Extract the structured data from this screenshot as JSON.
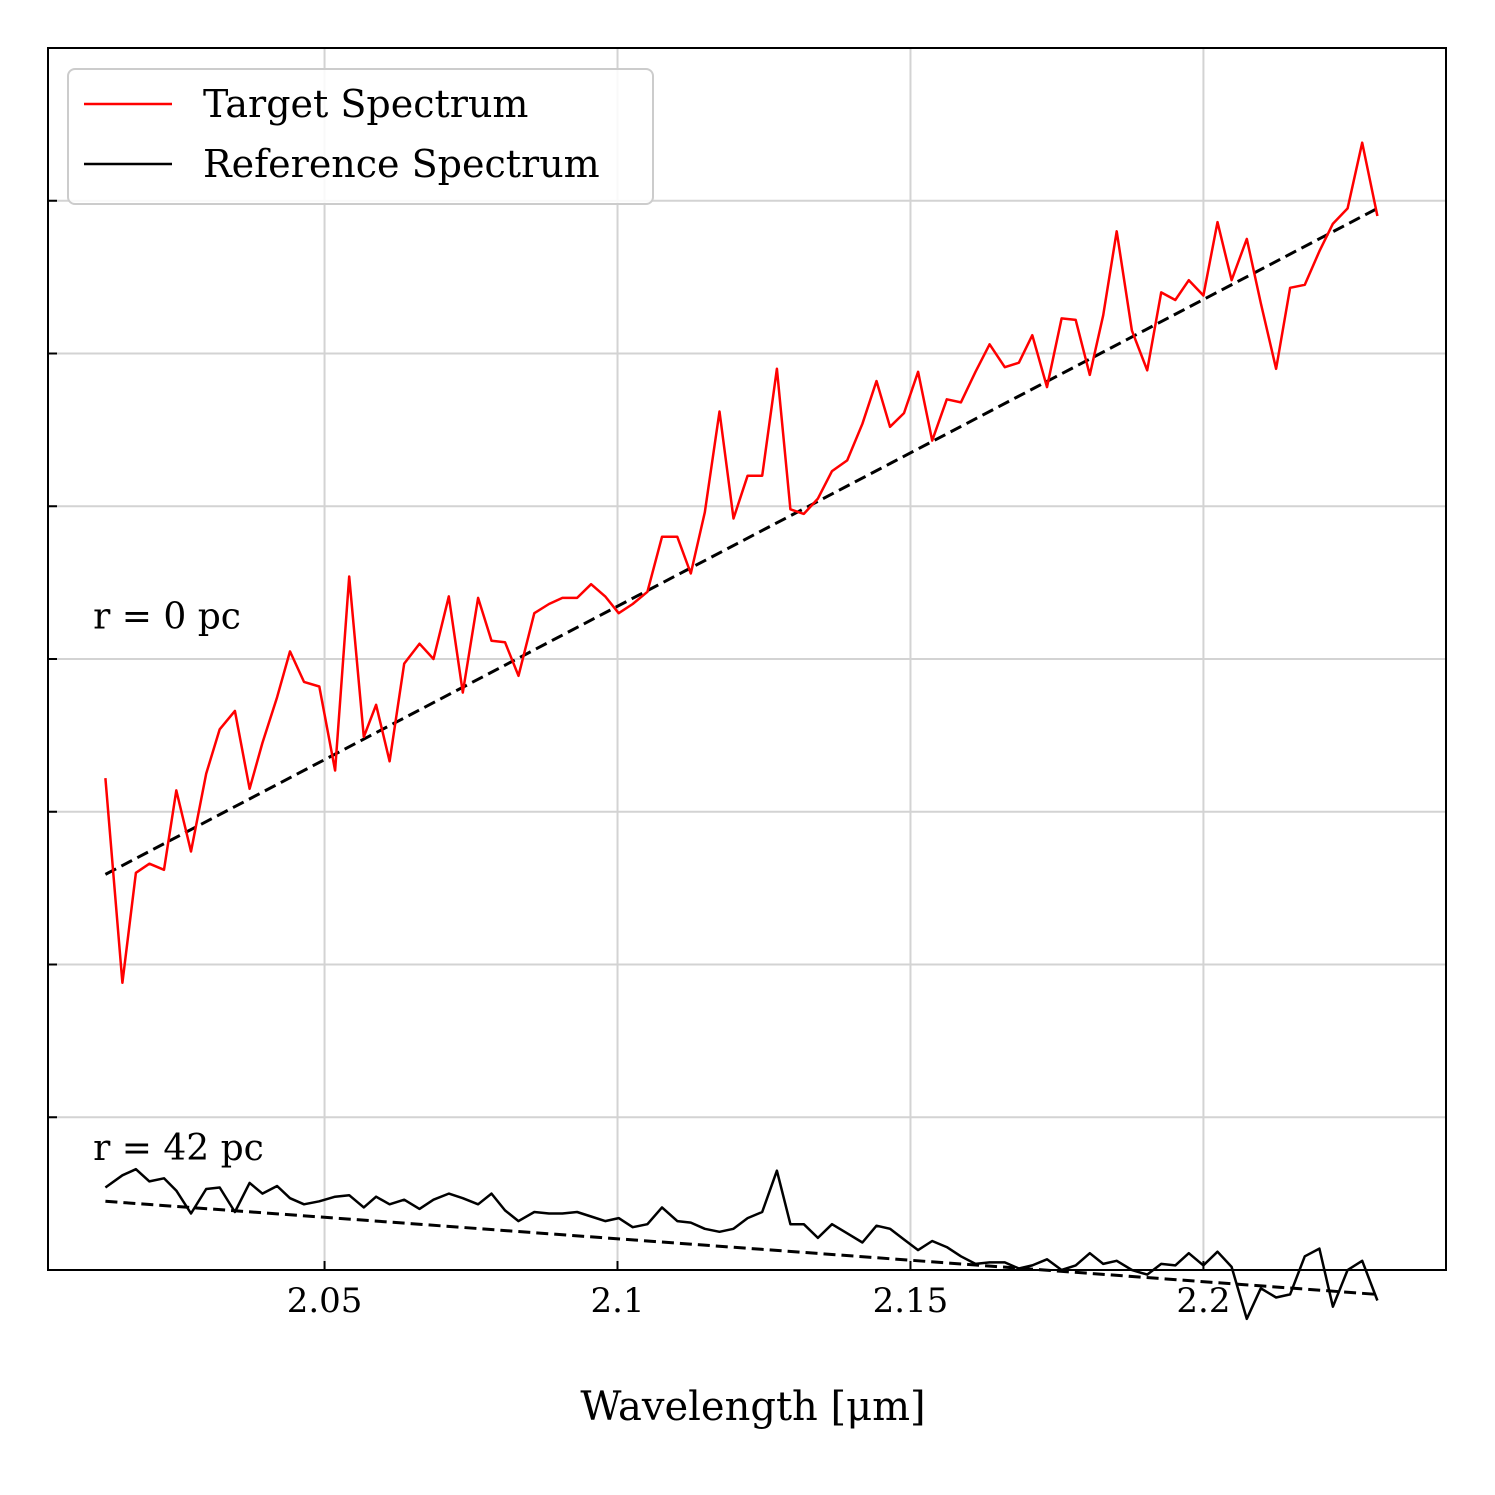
{
  "chart_data": {
    "type": "line",
    "title": "",
    "xlabel": "Wavelength [μm]",
    "ylabel": "",
    "xlim": [
      2.0028,
      2.2414
    ],
    "ylim": [
      0,
      8
    ],
    "grid": true,
    "legend_position": "top-left",
    "x_ticks": [
      2.05,
      2.1,
      2.15,
      2.2
    ],
    "x_tick_labels": [
      "2.05",
      "2.1",
      "2.15",
      "2.2"
    ],
    "y_ticks": [
      1,
      2,
      3,
      4,
      5,
      6,
      7
    ],
    "annotations": [
      {
        "text": "r = 0 pc",
        "x": 2.0105,
        "y": 4.2
      },
      {
        "text": "r = 42 pc",
        "x": 2.0105,
        "y": 0.72
      }
    ],
    "series": [
      {
        "name": "Target Spectrum",
        "color": "#ff0000",
        "x": [
          2.0126,
          2.0155,
          2.0178,
          2.0201,
          2.0226,
          2.0247,
          2.0272,
          2.0298,
          2.0321,
          2.0347,
          2.0372,
          2.0394,
          2.0419,
          2.0441,
          2.0465,
          2.0491,
          2.0518,
          2.0542,
          2.0567,
          2.0588,
          2.0611,
          2.0636,
          2.0662,
          2.0686,
          2.0712,
          2.0736,
          2.0762,
          2.0785,
          2.0808,
          2.0831,
          2.0858,
          2.0883,
          2.0906,
          2.0931,
          2.0955,
          2.0979,
          2.1002,
          2.1026,
          2.1051,
          2.1076,
          2.1102,
          2.1125,
          2.1149,
          2.1174,
          2.1198,
          2.1222,
          2.1247,
          2.1272,
          2.1295,
          2.1318,
          2.1342,
          2.1366,
          2.1392,
          2.1418,
          2.1442,
          2.1465,
          2.1489,
          2.1513,
          2.1537,
          2.1562,
          2.1586,
          2.1611,
          2.1635,
          2.1661,
          2.1685,
          2.1708,
          2.1733,
          2.1758,
          2.1782,
          2.1806,
          2.1829,
          2.1852,
          2.1878,
          2.1904,
          2.1928,
          2.1952,
          2.1975,
          2.2,
          2.2024,
          2.2048,
          2.2074,
          2.2098,
          2.2124,
          2.2148,
          2.2173,
          2.2198,
          2.2221,
          2.2246,
          2.2271,
          2.2297
        ],
        "y": [
          3.22,
          1.88,
          2.6,
          2.66,
          2.62,
          3.14,
          2.74,
          3.25,
          3.54,
          3.66,
          3.15,
          3.45,
          3.75,
          4.05,
          3.85,
          3.82,
          3.27,
          4.54,
          3.49,
          3.7,
          3.33,
          3.97,
          4.1,
          4.0,
          4.41,
          3.78,
          4.4,
          4.12,
          4.11,
          3.89,
          4.3,
          4.36,
          4.4,
          4.4,
          4.49,
          4.41,
          4.3,
          4.36,
          4.44,
          4.8,
          4.8,
          4.56,
          4.96,
          5.62,
          4.92,
          5.2,
          5.2,
          5.9,
          4.98,
          4.95,
          5.05,
          5.23,
          5.3,
          5.54,
          5.82,
          5.52,
          5.61,
          5.88,
          5.43,
          5.7,
          5.68,
          5.88,
          6.06,
          5.91,
          5.94,
          6.12,
          5.78,
          6.23,
          6.22,
          5.86,
          6.25,
          6.8,
          6.15,
          5.89,
          6.4,
          6.35,
          6.48,
          6.38,
          6.86,
          6.48,
          6.75,
          6.33,
          5.9,
          6.43,
          6.45,
          6.67,
          6.85,
          6.95,
          7.38,
          6.9
        ]
      },
      {
        "name": "Reference Spectrum",
        "color": "#000000",
        "x": [
          2.0126,
          2.0155,
          2.0178,
          2.0201,
          2.0226,
          2.0247,
          2.0272,
          2.0298,
          2.0321,
          2.0347,
          2.0372,
          2.0394,
          2.0419,
          2.0441,
          2.0465,
          2.0491,
          2.0518,
          2.0542,
          2.0567,
          2.0588,
          2.0611,
          2.0636,
          2.0662,
          2.0686,
          2.0712,
          2.0736,
          2.0762,
          2.0785,
          2.0808,
          2.0831,
          2.0858,
          2.0883,
          2.0906,
          2.0931,
          2.0955,
          2.0979,
          2.1002,
          2.1026,
          2.1051,
          2.1076,
          2.1102,
          2.1125,
          2.1149,
          2.1174,
          2.1198,
          2.1222,
          2.1247,
          2.1272,
          2.1295,
          2.1318,
          2.1342,
          2.1366,
          2.1392,
          2.1418,
          2.1442,
          2.1465,
          2.1489,
          2.1513,
          2.1537,
          2.1562,
          2.1586,
          2.1611,
          2.1635,
          2.1661,
          2.1685,
          2.1708,
          2.1733,
          2.1758,
          2.1782,
          2.1806,
          2.1829,
          2.1852,
          2.1878,
          2.1904,
          2.1928,
          2.1952,
          2.1975,
          2.2,
          2.2024,
          2.2048,
          2.2074,
          2.2098,
          2.2124,
          2.2148,
          2.2173,
          2.2198,
          2.2221,
          2.2246,
          2.2271,
          2.2297
        ],
        "y": [
          0.54,
          0.62,
          0.66,
          0.58,
          0.6,
          0.52,
          0.37,
          0.53,
          0.54,
          0.38,
          0.57,
          0.5,
          0.55,
          0.47,
          0.43,
          0.45,
          0.48,
          0.49,
          0.41,
          0.48,
          0.43,
          0.46,
          0.4,
          0.46,
          0.5,
          0.47,
          0.43,
          0.5,
          0.39,
          0.32,
          0.38,
          0.37,
          0.37,
          0.38,
          0.35,
          0.32,
          0.34,
          0.28,
          0.3,
          0.41,
          0.32,
          0.31,
          0.27,
          0.25,
          0.27,
          0.34,
          0.38,
          0.65,
          0.3,
          0.3,
          0.21,
          0.3,
          0.24,
          0.18,
          0.29,
          0.27,
          0.2,
          0.13,
          0.19,
          0.15,
          0.09,
          0.04,
          0.05,
          0.05,
          0.01,
          0.03,
          0.07,
          0.0,
          0.03,
          0.11,
          0.04,
          0.06,
          0.0,
          -0.03,
          0.04,
          0.03,
          0.11,
          0.03,
          0.12,
          0.02,
          -0.32,
          -0.12,
          -0.18,
          -0.16,
          0.09,
          0.14,
          -0.24,
          0.0,
          0.06,
          -0.2
        ]
      }
    ],
    "fit_lines": [
      {
        "series": "Target Spectrum",
        "style": "dashed",
        "color": "#000000",
        "x": [
          2.0126,
          2.2297
        ],
        "y": [
          2.59,
          6.95
        ]
      },
      {
        "series": "Reference Spectrum",
        "style": "dashed",
        "color": "#000000",
        "x": [
          2.0126,
          2.2297
        ],
        "y": [
          0.45,
          -0.16
        ]
      }
    ]
  }
}
